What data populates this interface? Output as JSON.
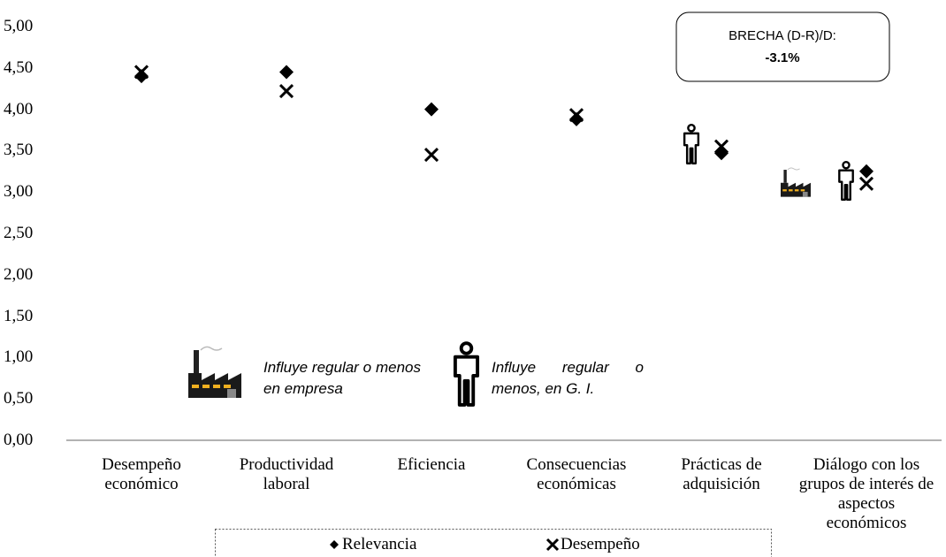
{
  "chart_data": {
    "type": "dot",
    "categories": [
      "Desempeño económico",
      "Productividad laboral",
      "Eficiencia",
      "Consecuencias económicas",
      "Prácticas de adquisición",
      "Diálogo con los grupos de interés de aspectos económicos"
    ],
    "series": [
      {
        "name": "Relevancia",
        "color": "#000000",
        "marker": "diamond",
        "values": [
          4.4,
          4.45,
          4.0,
          3.88,
          3.47,
          3.25
        ]
      },
      {
        "name": "Desempeño",
        "color": "#000000",
        "marker": "x",
        "values": [
          4.45,
          4.22,
          3.45,
          3.93,
          3.55,
          3.1
        ]
      }
    ],
    "ylim": [
      0,
      5
    ],
    "yticks": [
      {
        "value": 0,
        "label": "0,00"
      },
      {
        "value": 0.5,
        "label": "0,50"
      },
      {
        "value": 1,
        "label": "1,00"
      },
      {
        "value": 1.5,
        "label": "1,50"
      },
      {
        "value": 2,
        "label": "2,00"
      },
      {
        "value": 2.5,
        "label": "2,50"
      },
      {
        "value": 3,
        "label": "3,00"
      },
      {
        "value": 3.5,
        "label": "3,50"
      },
      {
        "value": 4,
        "label": "4,00"
      },
      {
        "value": 4.5,
        "label": "4,50"
      },
      {
        "value": 5,
        "label": "5,00"
      }
    ],
    "annotations": {
      "gap_title": "BRECHA (D-R)/D:",
      "gap_value": "-3.1%",
      "company_note": "Influye regular o menos en empresa",
      "stakeholder_note": "Influye regular o menos, en G. I."
    },
    "legend": "bottom"
  }
}
